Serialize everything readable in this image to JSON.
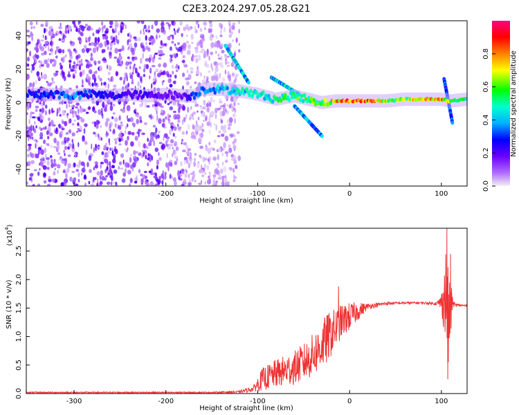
{
  "figure_title": "C2E3.2024.297.05.28.G21",
  "chart_data": [
    {
      "type": "heatmap",
      "title": "C2E3.2024.297.05.28.G21",
      "xlabel": "Height of straight line (km)",
      "ylabel": "Frequency (Hz)",
      "xlim": [
        -352,
        128
      ],
      "ylim": [
        -50,
        49
      ],
      "xticks": [
        -300,
        -200,
        -100,
        0,
        100
      ],
      "yticks": [
        -40,
        -20,
        0,
        20,
        40
      ],
      "colorbar": {
        "label": "Normalized spectral amplitude",
        "range": [
          0,
          1
        ],
        "ticks": [
          0.0,
          0.2,
          0.4,
          0.6,
          0.8
        ],
        "colormap": [
          "#f2f2f2",
          "#b06bff",
          "#6a00ff",
          "#0000ff",
          "#00b0ff",
          "#00ffd0",
          "#00ff00",
          "#ffff00",
          "#ff8000",
          "#ff0000",
          "#ff0080"
        ]
      },
      "background_noise": {
        "description": "scattered low-amplitude speckle below this height",
        "x_range": [
          -352,
          -120
        ],
        "freq_range": [
          -50,
          49
        ],
        "typical_amplitude": 0.15
      },
      "signal_track": [
        {
          "x": -340,
          "freq": 5,
          "amp": 0.3
        },
        {
          "x": -320,
          "freq": 5,
          "amp": 0.35
        },
        {
          "x": -300,
          "freq": 4,
          "amp": 0.4
        },
        {
          "x": -280,
          "freq": 5,
          "amp": 0.3
        },
        {
          "x": -260,
          "freq": 4,
          "amp": 0.3
        },
        {
          "x": -240,
          "freq": 5,
          "amp": 0.25
        },
        {
          "x": -220,
          "freq": 4,
          "amp": 0.25
        },
        {
          "x": -200,
          "freq": 5,
          "amp": 0.2
        },
        {
          "x": -180,
          "freq": 4,
          "amp": 0.2
        },
        {
          "x": -170,
          "freq": 4,
          "amp": 0.35
        },
        {
          "x": -160,
          "freq": 8,
          "amp": 0.4
        },
        {
          "x": -140,
          "freq": 8,
          "amp": 0.45
        },
        {
          "x": -120,
          "freq": 7,
          "amp": 0.5
        },
        {
          "x": -100,
          "freq": 5,
          "amp": 0.5
        },
        {
          "x": -80,
          "freq": 2,
          "amp": 0.55
        },
        {
          "x": -60,
          "freq": 4,
          "amp": 0.6
        },
        {
          "x": -45,
          "freq": 2,
          "amp": 0.6
        },
        {
          "x": -30,
          "freq": 0,
          "amp": 0.65
        },
        {
          "x": -15,
          "freq": 1,
          "amp": 0.8
        },
        {
          "x": 0,
          "freq": 1,
          "amp": 0.9
        },
        {
          "x": 20,
          "freq": 1,
          "amp": 0.85
        },
        {
          "x": 40,
          "freq": 1,
          "amp": 0.7
        },
        {
          "x": 60,
          "freq": 2,
          "amp": 0.65
        },
        {
          "x": 80,
          "freq": 2,
          "amp": 0.8
        },
        {
          "x": 100,
          "freq": 2,
          "amp": 0.85
        },
        {
          "x": 110,
          "freq": 1,
          "amp": 0.6
        },
        {
          "x": 128,
          "freq": 2,
          "amp": 0.55
        }
      ],
      "streaks": [
        {
          "x": [
            -135,
            -110
          ],
          "freq": [
            34,
            12
          ],
          "amp": 0.45
        },
        {
          "x": [
            -60,
            -30
          ],
          "freq": [
            -2,
            -20
          ],
          "amp": 0.4
        },
        {
          "x": [
            -85,
            -55
          ],
          "freq": [
            15,
            5
          ],
          "amp": 0.45
        },
        {
          "x": [
            103,
            112
          ],
          "freq": [
            14,
            -12
          ],
          "amp": 0.35
        }
      ]
    },
    {
      "type": "line",
      "xlabel": "Height of straight line (km)",
      "ylabel": "SNR (10 * v/v)",
      "y_multiplier": "(x10",
      "y_multiplier_exponent": "4",
      "xlim": [
        -352,
        128
      ],
      "ylim": [
        0.0,
        2.9
      ],
      "xticks": [
        -300,
        -200,
        -100,
        0,
        100
      ],
      "yticks": [
        0.0,
        0.5,
        1.0,
        1.5,
        2.0,
        2.5
      ],
      "color": "#ee3333",
      "series": [
        {
          "x": [
            -352,
            -300,
            -250,
            -200,
            -150,
            -120,
            -105,
            -95,
            -80,
            -60,
            -45,
            -35,
            -25,
            -15,
            -10,
            0,
            10,
            20,
            40,
            60,
            80,
            95,
            100,
            105,
            108,
            110,
            112,
            115,
            120,
            128
          ],
          "values": [
            0.02,
            0.02,
            0.02,
            0.02,
            0.02,
            0.03,
            0.08,
            0.25,
            0.35,
            0.45,
            0.6,
            0.75,
            0.95,
            1.15,
            1.25,
            1.35,
            1.45,
            1.53,
            1.58,
            1.59,
            1.59,
            1.58,
            1.6,
            1.7,
            1.2,
            1.45,
            1.6,
            1.55,
            1.55,
            1.54
          ],
          "noise_envelope": [
            0.01,
            0.01,
            0.01,
            0.01,
            0.01,
            0.02,
            0.05,
            0.2,
            0.25,
            0.3,
            0.35,
            0.4,
            0.45,
            0.35,
            0.3,
            0.25,
            0.15,
            0.05,
            0.03,
            0.02,
            0.02,
            0.03,
            0.15,
            0.9,
            0.9,
            0.6,
            0.1,
            0.03,
            0.02,
            0.02
          ]
        }
      ],
      "spikes": [
        {
          "x": -12,
          "value": 1.88
        },
        {
          "x": 106,
          "value": 2.9
        },
        {
          "x": 107,
          "value": 0.25
        },
        {
          "x": 110,
          "value": 2.45
        }
      ]
    }
  ]
}
